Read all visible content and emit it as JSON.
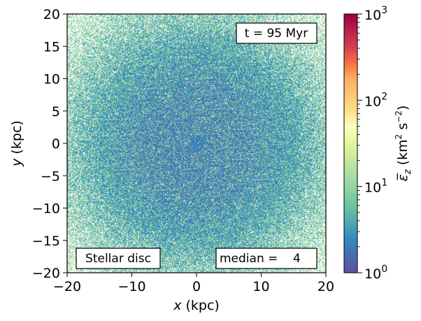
{
  "chart_data": {
    "type": "heatmap",
    "title": "",
    "xlabel_var": "x",
    "xlabel_unit": " (kpc)",
    "ylabel_var": "y",
    "ylabel_unit": " (kpc)",
    "xlim": [
      -20,
      20
    ],
    "ylim": [
      -20,
      20
    ],
    "xticks": [
      "−20",
      "−10",
      "0",
      "10",
      "20"
    ],
    "yticks": [
      "20",
      "15",
      "10",
      "5",
      "0",
      "−5",
      "−10",
      "−15",
      "−20"
    ],
    "colorbar": {
      "label_var": "ε̅",
      "label_sub": "z",
      "label_unit_open": " (km",
      "label_unit_exp1": "2",
      "label_unit_mid": " s",
      "label_unit_exp2": "−2",
      "label_unit_close": ")",
      "scale": "log",
      "range": [
        1,
        1000
      ],
      "colormap": "Spectral_r",
      "major_ticks": [
        {
          "base": "10",
          "exp": "0"
        },
        {
          "base": "10",
          "exp": "1"
        },
        {
          "base": "10",
          "exp": "2"
        },
        {
          "base": "10",
          "exp": "3"
        }
      ]
    },
    "annotations": {
      "time": "t = 95 Myr",
      "component": "Stellar disc",
      "median": "median =    4"
    },
    "grid": false,
    "colors": {
      "center_blue": "#5e4fa2",
      "mid_blue": "#3288bd",
      "teal": "#66c2a5",
      "green": "#abdda4",
      "pale_yellow": "#e6f598",
      "light_yellow": "#ffffbf",
      "orange": "#fdae61",
      "red": "#d53e4f",
      "maroon": "#9e0142"
    }
  }
}
